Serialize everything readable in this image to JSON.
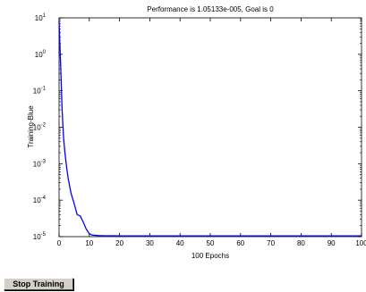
{
  "stop_button_label": "Stop Training",
  "chart_data": {
    "type": "line",
    "title": "Performance is 1.05133e-005, Goal is 0",
    "xlabel": "100 Epochs",
    "ylabel": "Training-Blue",
    "xlim": [
      0,
      100
    ],
    "ylim": [
      1e-05,
      10
    ],
    "y_scale": "log",
    "grid": false,
    "x_ticks": [
      0,
      10,
      20,
      30,
      40,
      50,
      60,
      70,
      80,
      90,
      100
    ],
    "x_tick_labels": [
      "0",
      "10",
      "20",
      "30",
      "40",
      "50",
      "60",
      "70",
      "80",
      "90",
      "100"
    ],
    "y_ticks": [
      {
        "value": 1e-05,
        "base": "10",
        "exp": "-5"
      },
      {
        "value": 0.0001,
        "base": "10",
        "exp": "-4"
      },
      {
        "value": 0.001,
        "base": "10",
        "exp": "-3"
      },
      {
        "value": 0.01,
        "base": "10",
        "exp": "-2"
      },
      {
        "value": 0.1,
        "base": "10",
        "exp": "-1"
      },
      {
        "value": 1,
        "base": "10",
        "exp": "0"
      },
      {
        "value": 10,
        "base": "10",
        "exp": "1"
      }
    ],
    "series": [
      {
        "color": "#0000ff",
        "x": [
          0,
          0.5,
          1,
          1.5,
          2,
          2.5,
          3,
          4,
          5,
          6,
          7,
          8,
          9,
          10,
          11,
          13,
          15,
          20,
          30,
          50,
          100
        ],
        "y": [
          8,
          0.6,
          0.03,
          0.005,
          0.0018,
          0.0008,
          0.0004,
          0.00015,
          8e-05,
          4e-05,
          3.7e-05,
          2.5e-05,
          1.6e-05,
          1.2e-05,
          1.1e-05,
          1.07e-05,
          1.06e-05,
          1.05e-05,
          1.052e-05,
          1.051e-05,
          1.05133e-05
        ]
      }
    ]
  }
}
